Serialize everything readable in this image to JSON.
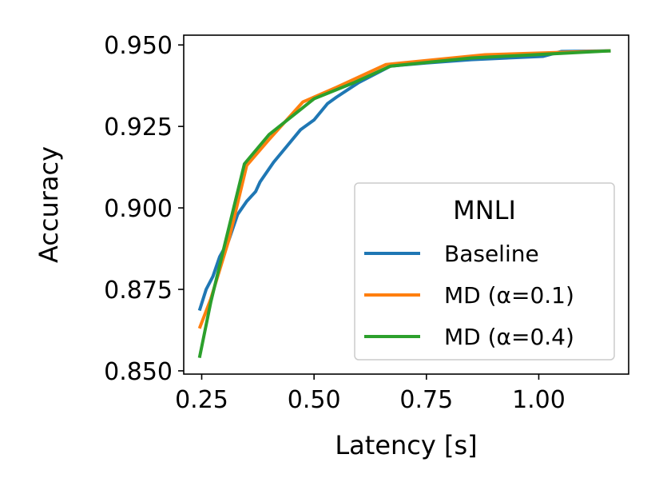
{
  "chart_data": {
    "type": "line",
    "xlabel": "Latency [s]",
    "ylabel": "Accuracy",
    "xlim": [
      0.21,
      1.2
    ],
    "ylim": [
      0.849,
      0.953
    ],
    "xticks": [
      0.25,
      0.5,
      0.75,
      1.0
    ],
    "xtick_labels": [
      "0.25",
      "0.50",
      "0.75",
      "1.00"
    ],
    "yticks": [
      0.85,
      0.875,
      0.9,
      0.925,
      0.95
    ],
    "ytick_labels": [
      "0.850",
      "0.875",
      "0.900",
      "0.925",
      "0.950"
    ],
    "grid": false,
    "legend": {
      "title": "MNLI",
      "placement": "lower-right"
    },
    "series": [
      {
        "name": "Baseline",
        "color": "#1f77b4",
        "points": [
          [
            0.245,
            0.8685
          ],
          [
            0.26,
            0.875
          ],
          [
            0.275,
            0.879
          ],
          [
            0.29,
            0.885
          ],
          [
            0.31,
            0.89
          ],
          [
            0.33,
            0.898
          ],
          [
            0.35,
            0.902
          ],
          [
            0.37,
            0.905
          ],
          [
            0.38,
            0.908
          ],
          [
            0.41,
            0.914
          ],
          [
            0.44,
            0.919
          ],
          [
            0.47,
            0.924
          ],
          [
            0.5,
            0.927
          ],
          [
            0.53,
            0.932
          ],
          [
            0.55,
            0.934
          ],
          [
            0.6,
            0.9385
          ],
          [
            0.67,
            0.9435
          ],
          [
            0.75,
            0.9445
          ],
          [
            0.85,
            0.9455
          ],
          [
            1.01,
            0.9465
          ],
          [
            1.05,
            0.948
          ],
          [
            1.16,
            0.9482
          ]
        ]
      },
      {
        "name": "MD (α=0.1)",
        "color": "#ff7f0e",
        "points": [
          [
            0.245,
            0.863
          ],
          [
            0.27,
            0.872
          ],
          [
            0.31,
            0.89
          ],
          [
            0.35,
            0.913
          ],
          [
            0.4,
            0.921
          ],
          [
            0.475,
            0.9325
          ],
          [
            0.55,
            0.937
          ],
          [
            0.66,
            0.944
          ],
          [
            0.88,
            0.947
          ],
          [
            1.16,
            0.9482
          ]
        ]
      },
      {
        "name": "MD (α=0.4)",
        "color": "#2ca02c",
        "points": [
          [
            0.245,
            0.854
          ],
          [
            0.27,
            0.871
          ],
          [
            0.3,
            0.888
          ],
          [
            0.345,
            0.9135
          ],
          [
            0.4,
            0.9225
          ],
          [
            0.5,
            0.9335
          ],
          [
            0.59,
            0.9385
          ],
          [
            0.67,
            0.9435
          ],
          [
            0.85,
            0.946
          ],
          [
            1.16,
            0.9482
          ]
        ]
      }
    ]
  }
}
